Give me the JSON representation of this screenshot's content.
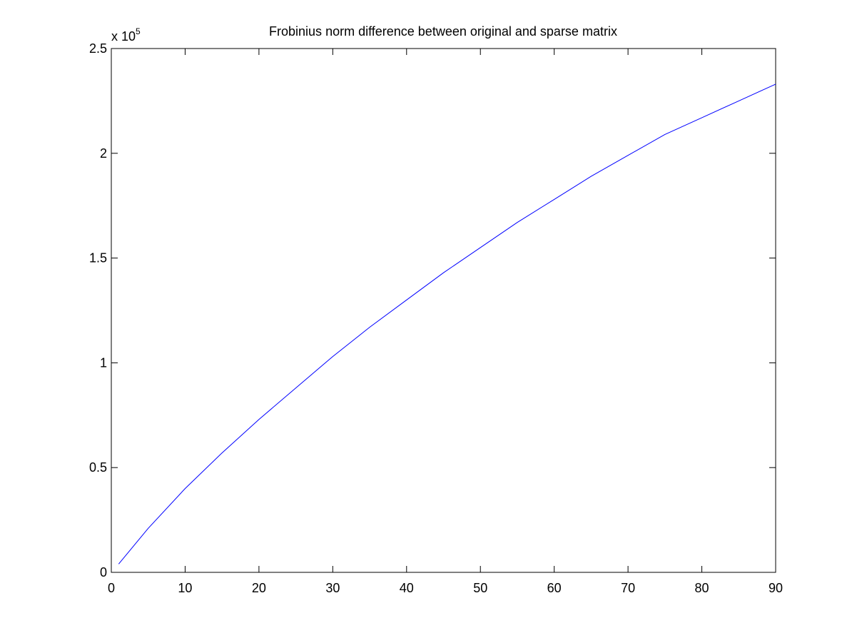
{
  "chart_data": {
    "type": "line",
    "title": "Frobinius norm difference between original and sparse matrix",
    "xlabel": "",
    "ylabel": "",
    "xlim": [
      0,
      90
    ],
    "ylim": [
      0,
      250000
    ],
    "grid": false,
    "y_exponent_label": {
      "base": "x 10",
      "exponent": "5"
    },
    "x_ticks": [
      0,
      10,
      20,
      30,
      40,
      50,
      60,
      70,
      80,
      90
    ],
    "x_tick_labels": [
      "0",
      "10",
      "20",
      "30",
      "40",
      "50",
      "60",
      "70",
      "80",
      "90"
    ],
    "y_ticks": [
      0,
      50000,
      100000,
      150000,
      200000,
      250000
    ],
    "y_tick_labels": [
      "0",
      "0.5",
      "1",
      "1.5",
      "2",
      "2.5"
    ],
    "series": [
      {
        "color": "#0000ff",
        "x": [
          1,
          5,
          10,
          15,
          20,
          25,
          30,
          35,
          40,
          45,
          50,
          55,
          60,
          65,
          70,
          75,
          80,
          85,
          90
        ],
        "y": [
          4000,
          21000,
          40000,
          57000,
          73000,
          88000,
          103000,
          117000,
          130000,
          143000,
          155000,
          167000,
          178000,
          189000,
          199000,
          209000,
          217000,
          225000,
          233000
        ]
      }
    ]
  }
}
